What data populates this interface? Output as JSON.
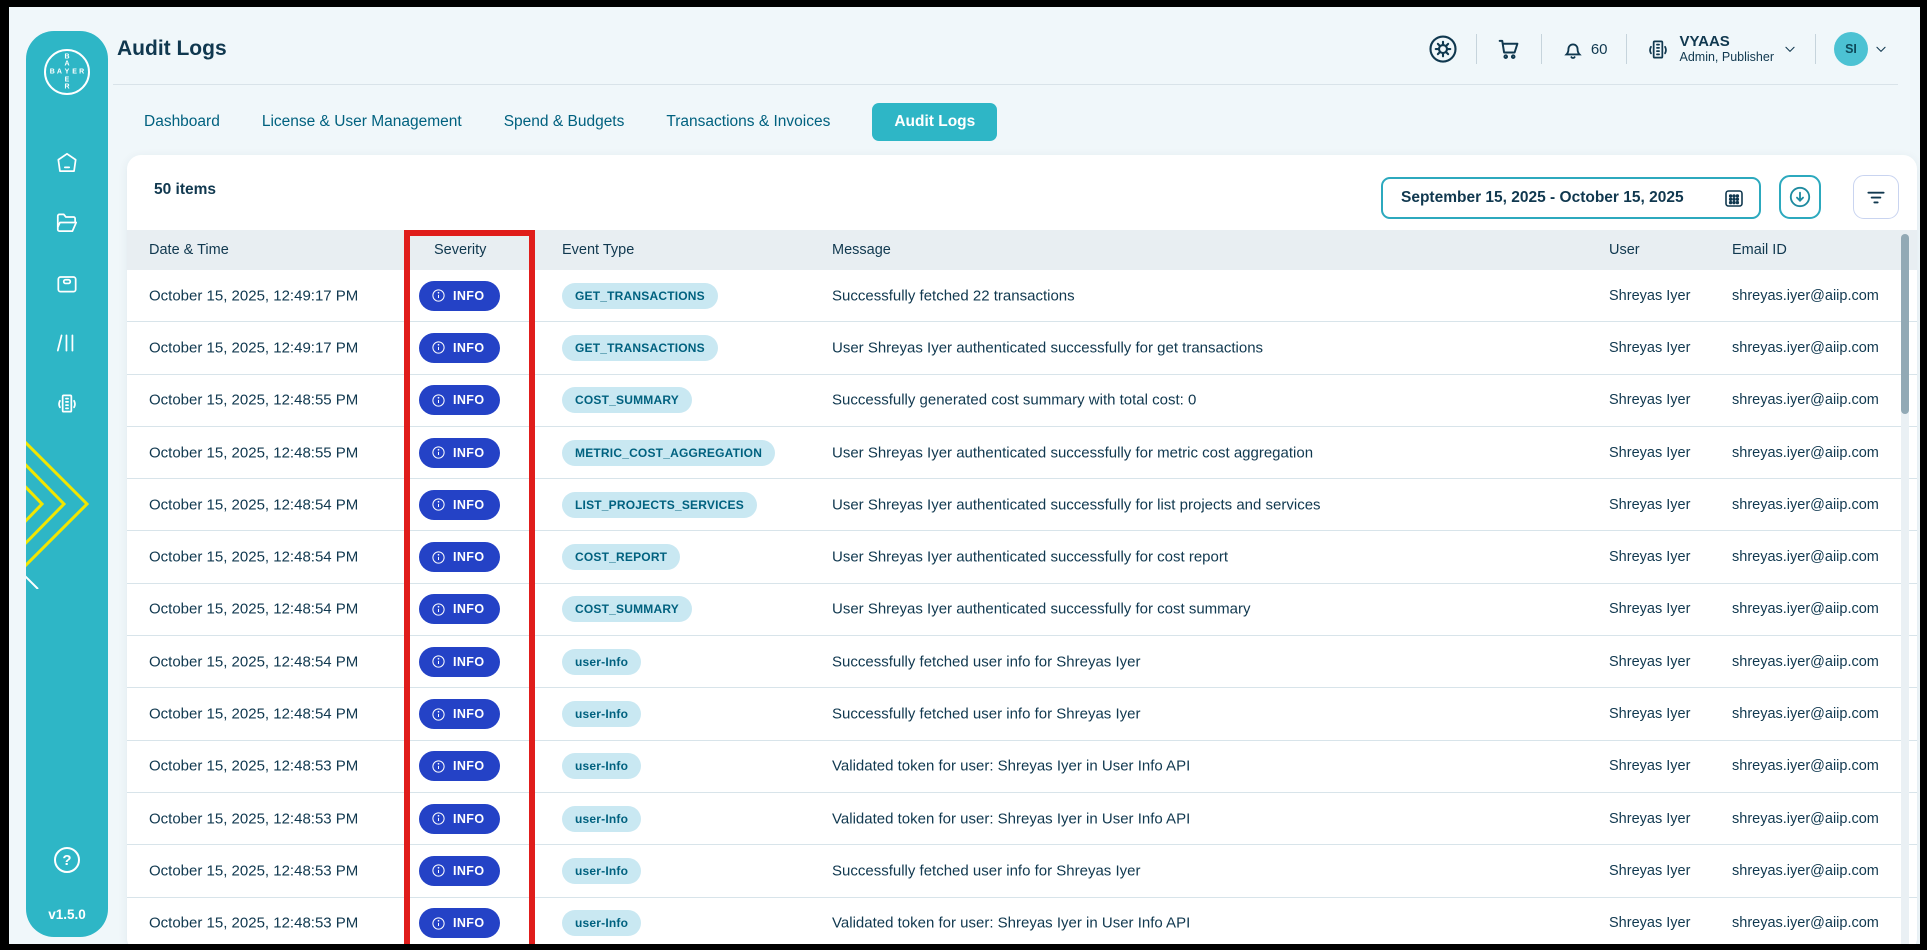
{
  "page": {
    "title": "Audit Logs",
    "version": "v1.5.0"
  },
  "sidebar": {
    "icons": [
      "home",
      "projects-folder",
      "orders-bag",
      "library",
      "organization"
    ],
    "help_label": "?"
  },
  "header": {
    "notification_count": "60",
    "org": {
      "name": "VYAAS",
      "role": "Admin, Publisher"
    },
    "avatar_initials": "SI",
    "icon_names": [
      "settings-gear-icon",
      "cart-icon",
      "bell-icon",
      "organization-icon"
    ]
  },
  "tabs": [
    {
      "label": "Dashboard",
      "active": false
    },
    {
      "label": "License & User Management",
      "active": false
    },
    {
      "label": "Spend & Budgets",
      "active": false
    },
    {
      "label": "Transactions & Invoices",
      "active": false
    },
    {
      "label": "Audit Logs",
      "active": true
    }
  ],
  "toolbar": {
    "items_count": "50 items",
    "date_range": "September 15, 2025 - October 15, 2025"
  },
  "table": {
    "columns": [
      "Date & Time",
      "Severity",
      "Event Type",
      "Message",
      "User",
      "Email ID"
    ],
    "rows": [
      {
        "date": "October 15, 2025, 12:49:17 PM",
        "severity": "INFO",
        "event_type": "GET_TRANSACTIONS",
        "message": "Successfully fetched 22 transactions",
        "user": "Shreyas Iyer",
        "email": "shreyas.iyer@aiip.com"
      },
      {
        "date": "October 15, 2025, 12:49:17 PM",
        "severity": "INFO",
        "event_type": "GET_TRANSACTIONS",
        "message": "User Shreyas Iyer authenticated successfully for get transactions",
        "user": "Shreyas Iyer",
        "email": "shreyas.iyer@aiip.com"
      },
      {
        "date": "October 15, 2025, 12:48:55 PM",
        "severity": "INFO",
        "event_type": "COST_SUMMARY",
        "message": "Successfully generated cost summary with total cost: 0",
        "user": "Shreyas Iyer",
        "email": "shreyas.iyer@aiip.com"
      },
      {
        "date": "October 15, 2025, 12:48:55 PM",
        "severity": "INFO",
        "event_type": "METRIC_COST_AGGREGATION",
        "message": "User Shreyas Iyer authenticated successfully for metric cost aggregation",
        "user": "Shreyas Iyer",
        "email": "shreyas.iyer@aiip.com"
      },
      {
        "date": "October 15, 2025, 12:48:54 PM",
        "severity": "INFO",
        "event_type": "LIST_PROJECTS_SERVICES",
        "message": "User Shreyas Iyer authenticated successfully for list projects and services",
        "user": "Shreyas Iyer",
        "email": "shreyas.iyer@aiip.com"
      },
      {
        "date": "October 15, 2025, 12:48:54 PM",
        "severity": "INFO",
        "event_type": "COST_REPORT",
        "message": "User Shreyas Iyer authenticated successfully for cost report",
        "user": "Shreyas Iyer",
        "email": "shreyas.iyer@aiip.com"
      },
      {
        "date": "October 15, 2025, 12:48:54 PM",
        "severity": "INFO",
        "event_type": "COST_SUMMARY",
        "message": "User Shreyas Iyer authenticated successfully for cost summary",
        "user": "Shreyas Iyer",
        "email": "shreyas.iyer@aiip.com"
      },
      {
        "date": "October 15, 2025, 12:48:54 PM",
        "severity": "INFO",
        "event_type": "user-Info",
        "message": "Successfully fetched user info for Shreyas Iyer",
        "user": "Shreyas Iyer",
        "email": "shreyas.iyer@aiip.com"
      },
      {
        "date": "October 15, 2025, 12:48:54 PM",
        "severity": "INFO",
        "event_type": "user-Info",
        "message": "Successfully fetched user info for Shreyas Iyer",
        "user": "Shreyas Iyer",
        "email": "shreyas.iyer@aiip.com"
      },
      {
        "date": "October 15, 2025, 12:48:53 PM",
        "severity": "INFO",
        "event_type": "user-Info",
        "message": "Validated token for user: Shreyas Iyer in User Info API",
        "user": "Shreyas Iyer",
        "email": "shreyas.iyer@aiip.com"
      },
      {
        "date": "October 15, 2025, 12:48:53 PM",
        "severity": "INFO",
        "event_type": "user-Info",
        "message": "Validated token for user: Shreyas Iyer in User Info API",
        "user": "Shreyas Iyer",
        "email": "shreyas.iyer@aiip.com"
      },
      {
        "date": "October 15, 2025, 12:48:53 PM",
        "severity": "INFO",
        "event_type": "user-Info",
        "message": "Successfully fetched user info for Shreyas Iyer",
        "user": "Shreyas Iyer",
        "email": "shreyas.iyer@aiip.com"
      },
      {
        "date": "October 15, 2025, 12:48:53 PM",
        "severity": "INFO",
        "event_type": "user-Info",
        "message": "Validated token for user: Shreyas Iyer in User Info API",
        "user": "Shreyas Iyer",
        "email": "shreyas.iyer@aiip.com"
      }
    ]
  },
  "colors": {
    "sidebar_teal": "#2EB6C6",
    "active_tab_teal": "#2EB6C6",
    "dark_text": "#10384F",
    "tab_text": "#00617F",
    "info_badge_blue": "#2442C6",
    "event_chip_bg": "#C9E8F2",
    "highlight_red": "#E01D1B",
    "accent_yellow": "#F2E600",
    "date_border_teal": "#2CA9BE"
  }
}
